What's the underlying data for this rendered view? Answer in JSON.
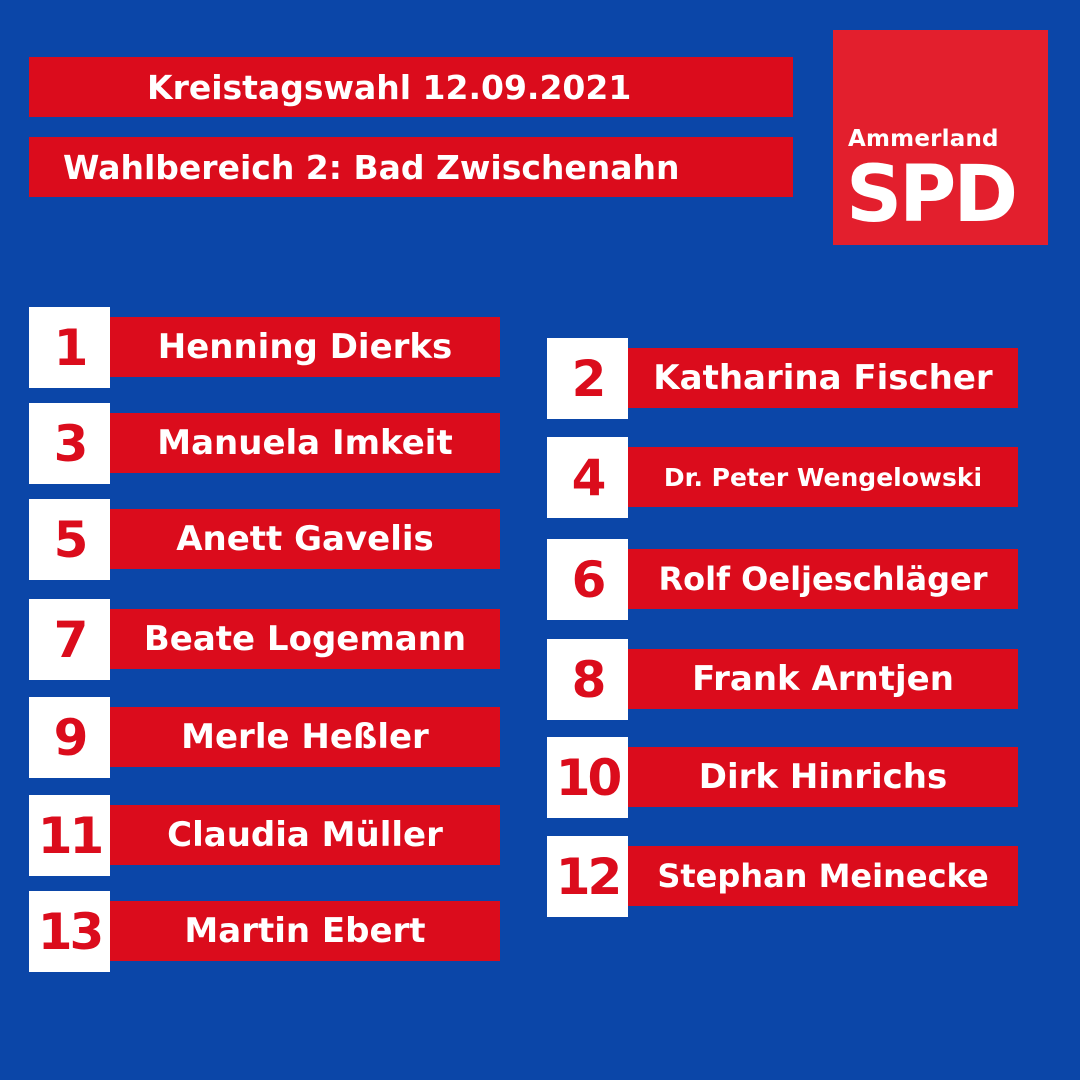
{
  "header": {
    "line1": "Kreistagswahl 12.09.2021",
    "line2": "Wahlbereich 2:  Bad Zwischenahn"
  },
  "logo": {
    "region": "Ammerland",
    "party": "SPD"
  },
  "candidates": [
    {
      "number": "1",
      "name": "Henning Dierks"
    },
    {
      "number": "2",
      "name": "Katharina Fischer"
    },
    {
      "number": "3",
      "name": "Manuela Imkeit"
    },
    {
      "number": "4",
      "name": "Dr. Peter Wengelowski"
    },
    {
      "number": "5",
      "name": "Anett Gavelis"
    },
    {
      "number": "6",
      "name": "Rolf Oeljeschläger"
    },
    {
      "number": "7",
      "name": "Beate Logemann"
    },
    {
      "number": "8",
      "name": "Frank Arntjen"
    },
    {
      "number": "9",
      "name": "Merle Heßler"
    },
    {
      "number": "10",
      "name": "Dirk Hinrichs"
    },
    {
      "number": "11",
      "name": "Claudia Müller"
    },
    {
      "number": "12",
      "name": "Stephan Meinecke"
    },
    {
      "number": "13",
      "name": "Martin Ebert"
    }
  ],
  "colors": {
    "background": "#0b46a8",
    "red": "#db0c1c",
    "logo_red": "#e31f2d",
    "white": "#ffffff"
  }
}
